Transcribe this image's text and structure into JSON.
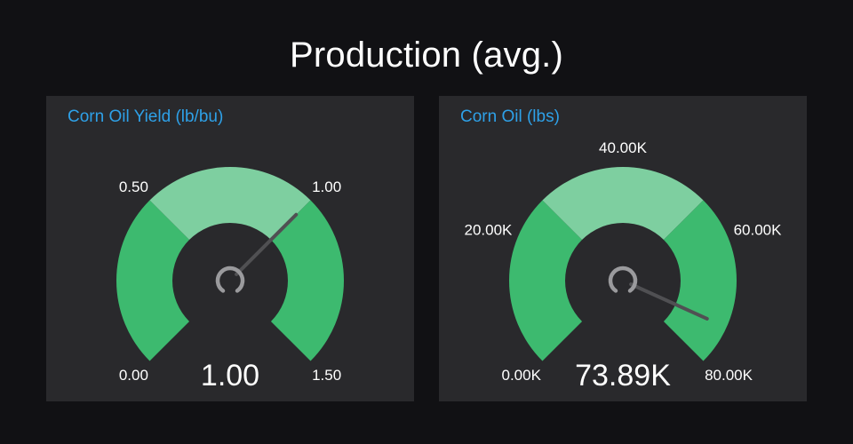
{
  "page": {
    "title": "Production (avg.)"
  },
  "chart_data": [
    {
      "type": "gauge",
      "title": "Corn Oil Yield (lb/bu)",
      "min": 0,
      "max": 1.5,
      "value": 1.0,
      "value_label": "1.00",
      "ticks": [
        {
          "value": 0,
          "label": "0.00"
        },
        {
          "value": 0.5,
          "label": "0.50"
        },
        {
          "value": 1.0,
          "label": "1.00"
        },
        {
          "value": 1.5,
          "label": "1.50"
        }
      ],
      "bands": [
        {
          "from": 0,
          "to": 0.5,
          "color": "#3dba6f"
        },
        {
          "from": 0.5,
          "to": 1.0,
          "color": "#7ecfa0"
        },
        {
          "from": 1.0,
          "to": 1.5,
          "color": "#3dba6f"
        }
      ]
    },
    {
      "type": "gauge",
      "title": "Corn Oil (lbs)",
      "min": 0,
      "max": 80000,
      "value": 73890,
      "value_label": "73.89K",
      "ticks": [
        {
          "value": 0,
          "label": "0.00K"
        },
        {
          "value": 20000,
          "label": "20.00K"
        },
        {
          "value": 40000,
          "label": "40.00K"
        },
        {
          "value": 60000,
          "label": "60.00K"
        },
        {
          "value": 80000,
          "label": "80.00K"
        }
      ],
      "bands": [
        {
          "from": 0,
          "to": 26667,
          "color": "#3dba6f"
        },
        {
          "from": 26667,
          "to": 53333,
          "color": "#7ecfa0"
        },
        {
          "from": 53333,
          "to": 80000,
          "color": "#3dba6f"
        }
      ]
    }
  ],
  "style": {
    "needle_color": "#505053",
    "hub_color": "#9a9a9d",
    "title_color": "#2ea1e8"
  }
}
